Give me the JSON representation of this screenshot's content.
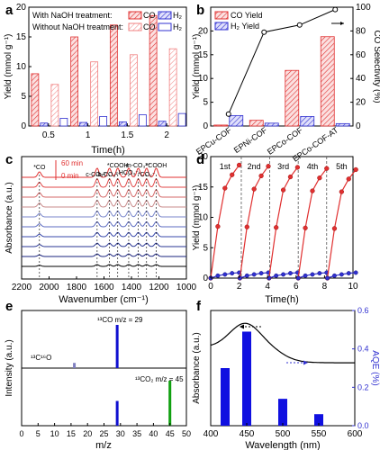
{
  "chart_data": [
    {
      "id": "a",
      "panel_label": "a",
      "type": "bar",
      "xlabel": "Time(h)",
      "ylabel": "Yield (mmol g⁻¹)",
      "ylim": [
        0,
        20
      ],
      "yticks": [
        "0",
        "5",
        "10",
        "15",
        "20"
      ],
      "categories": [
        "0.5",
        "1",
        "1.5",
        "2"
      ],
      "legend": {
        "with_label": "With NaOH treatment:",
        "without_label": "Without NaOH treatment:",
        "co": "CO",
        "h2": "H₂"
      },
      "series": [
        {
          "key": "with_co",
          "values": [
            8.8,
            15.0,
            17.0,
            18.6
          ]
        },
        {
          "key": "with_h2",
          "values": [
            0.5,
            0.6,
            0.7,
            0.8
          ]
        },
        {
          "key": "without_co",
          "values": [
            7.0,
            10.8,
            12.0,
            13.0
          ]
        },
        {
          "key": "without_h2",
          "values": [
            1.3,
            1.6,
            1.9,
            2.1
          ]
        }
      ],
      "colors": {
        "co": "#e03030",
        "h2": "#3030d0"
      }
    },
    {
      "id": "b",
      "panel_label": "b",
      "type": "bar",
      "ylabel": "Yield (mmol g⁻¹)",
      "y2label": "CO Selectivity (%)",
      "ylim": [
        0,
        25
      ],
      "y2lim": [
        0,
        100
      ],
      "yticks": [
        "0",
        "5",
        "10",
        "15",
        "20"
      ],
      "y2ticks": [
        "0",
        "20",
        "40",
        "60",
        "80",
        "100"
      ],
      "categories": [
        "EPCu-COF",
        "EPNi-COF",
        "EPCo-COF",
        "EPCo-COF-AT"
      ],
      "legend": {
        "co": "CO Yield",
        "h2": "H₂ Yield"
      },
      "co_yield": [
        0.2,
        1.2,
        11.7,
        18.8
      ],
      "h2_yield": [
        2.2,
        0.6,
        2.0,
        0.5
      ],
      "co_selectivity": [
        10,
        79,
        85,
        98
      ]
    },
    {
      "id": "c",
      "panel_label": "c",
      "type": "line",
      "xlabel": "Wavenumber (cm⁻¹)",
      "ylabel": "Absorbance (a.u.)",
      "xlim": [
        2200,
        1000
      ],
      "xticks": [
        "2200",
        "2000",
        "1800",
        "1600",
        "1400",
        "1200",
        "1000"
      ],
      "time_labels": {
        "top": "60 min",
        "bottom": "0 min"
      },
      "annotations": [
        "*CO",
        "c-CO₃²⁻",
        "b-CO₃²⁻",
        "*COOH",
        "HCO₃⁻",
        "m-CO₃²⁻",
        "*CO₂⁻",
        "*COOH"
      ],
      "peak_positions": [
        2070,
        1650,
        1560,
        1500,
        1420,
        1350,
        1290,
        1220
      ]
    },
    {
      "id": "d",
      "panel_label": "d",
      "type": "line",
      "ylabel": "Yield (mmol g⁻¹)",
      "xlabel": "Time(h)",
      "xlim": [
        0,
        10
      ],
      "ylim": [
        0,
        20
      ],
      "xticks": [
        "0",
        "2",
        "4",
        "6",
        "8",
        "10"
      ],
      "yticks": [
        "0",
        "5",
        "10",
        "15",
        "20"
      ],
      "cycles": [
        "1st",
        "2nd",
        "3rd",
        "4th",
        "5th"
      ],
      "cycle_x": [
        0,
        0.5,
        1,
        1.5,
        2
      ],
      "co": [
        0,
        8.5,
        14.8,
        17.0,
        18.6
      ],
      "h2": [
        0,
        0.4,
        0.6,
        0.8,
        0.9
      ]
    },
    {
      "id": "e",
      "panel_label": "e",
      "type": "bar",
      "xlabel": "m/z",
      "ylabel": "Intensity (a.u.)",
      "xlim": [
        0,
        50
      ],
      "xticks": [
        "0",
        "5",
        "10",
        "15",
        "20",
        "25",
        "30",
        "35",
        "40",
        "45",
        "50"
      ],
      "top": {
        "labels": [
          "¹³C¹⁶O",
          "¹³CO m/z = 29"
        ],
        "peaks": [
          {
            "x": 16,
            "v": 0.12
          },
          {
            "x": 29,
            "v": 1.0
          }
        ]
      },
      "bottom": {
        "labels": [
          "¹³CO₂ m/z = 45"
        ],
        "peaks": [
          {
            "x": 29,
            "v": 0.55
          },
          {
            "x": 45,
            "v": 1.0
          }
        ]
      }
    },
    {
      "id": "f",
      "panel_label": "f",
      "type": "bar",
      "xlabel": "Wavelength (nm)",
      "ylabel": "Absorbance (a.u.)",
      "y2label": "AQE (%)",
      "xlim": [
        400,
        600
      ],
      "xticks": [
        "400",
        "450",
        "500",
        "550",
        "600"
      ],
      "y2lim": [
        0,
        0.6
      ],
      "y2ticks": [
        "0.0",
        "0.2",
        "0.4",
        "0.6"
      ],
      "bars": [
        {
          "x": 420,
          "v": 0.3
        },
        {
          "x": 450,
          "v": 0.49
        },
        {
          "x": 500,
          "v": 0.14
        },
        {
          "x": 550,
          "v": 0.06
        }
      ]
    }
  ]
}
